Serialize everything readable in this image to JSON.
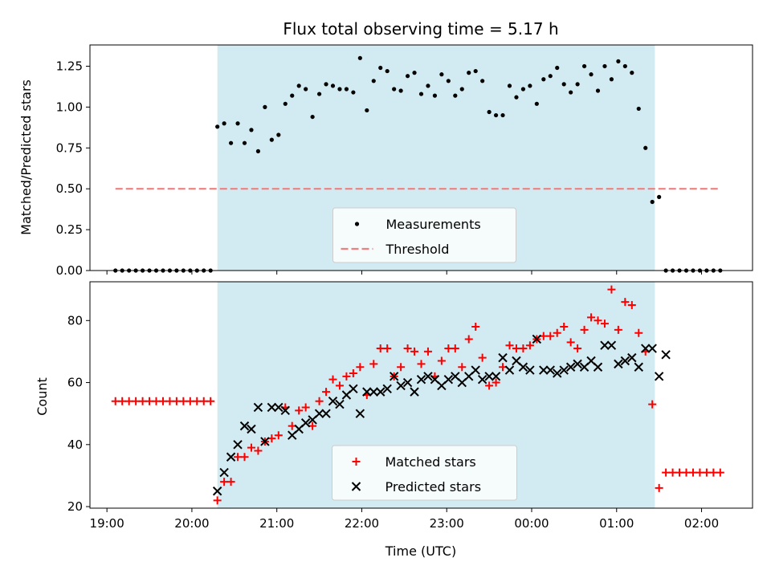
{
  "chart_data": [
    {
      "type": "scatter",
      "title": "Flux total observing time = 5.17 h",
      "ylabel": "Matched/Predicted stars",
      "xlabel": "",
      "x_unit": "hours since 19:00 UTC",
      "xlim": [
        18.8,
        26.6
      ],
      "ylim": [
        0.0,
        1.38
      ],
      "yticks": [
        0.0,
        0.25,
        0.5,
        0.75,
        1.0,
        1.25
      ],
      "ytick_labels": [
        "0.00",
        "0.25",
        "0.50",
        "0.75",
        "1.00",
        "1.25"
      ],
      "shaded_span": {
        "x": [
          20.3,
          25.45
        ],
        "color": "#add8e6"
      },
      "legend": {
        "placement": "lower center"
      },
      "series": [
        {
          "name": "Measurements",
          "marker": "dot",
          "color": "#000000",
          "x": [
            19.1,
            19.18,
            19.26,
            19.34,
            19.42,
            19.5,
            19.58,
            19.66,
            19.74,
            19.82,
            19.9,
            19.98,
            20.06,
            20.14,
            20.22,
            20.3,
            20.38,
            20.46,
            20.54,
            20.62,
            20.7,
            20.78,
            20.86,
            20.94,
            21.02,
            21.1,
            21.18,
            21.26,
            21.34,
            21.42,
            21.5,
            21.58,
            21.66,
            21.74,
            21.82,
            21.9,
            21.98,
            22.06,
            22.14,
            22.22,
            22.3,
            22.38,
            22.46,
            22.54,
            22.62,
            22.7,
            22.78,
            22.86,
            22.94,
            23.02,
            23.1,
            23.18,
            23.26,
            23.34,
            23.42,
            23.5,
            23.58,
            23.66,
            23.74,
            23.82,
            23.9,
            23.98,
            24.06,
            24.14,
            24.22,
            24.3,
            24.38,
            24.46,
            24.54,
            24.62,
            24.7,
            24.78,
            24.86,
            24.94,
            25.02,
            25.1,
            25.18,
            25.26,
            25.34,
            25.42,
            25.5,
            25.58,
            25.66,
            25.74,
            25.82,
            25.9,
            25.98,
            26.06,
            26.14,
            26.22
          ],
          "y": [
            0,
            0,
            0,
            0,
            0,
            0,
            0,
            0,
            0,
            0,
            0,
            0,
            0,
            0,
            0,
            0.88,
            0.9,
            0.78,
            0.9,
            0.78,
            0.86,
            0.73,
            1.0,
            0.8,
            0.83,
            1.02,
            1.07,
            1.13,
            1.11,
            0.94,
            1.08,
            1.14,
            1.13,
            1.11,
            1.11,
            1.09,
            1.3,
            0.98,
            1.16,
            1.24,
            1.22,
            1.11,
            1.1,
            1.19,
            1.21,
            1.08,
            1.13,
            1.07,
            1.2,
            1.16,
            1.07,
            1.11,
            1.21,
            1.22,
            1.16,
            0.97,
            0.95,
            0.95,
            1.13,
            1.06,
            1.11,
            1.13,
            1.02,
            1.17,
            1.19,
            1.24,
            1.14,
            1.09,
            1.14,
            1.25,
            1.2,
            1.1,
            1.25,
            1.17,
            1.28,
            1.25,
            1.21,
            0.99,
            0.75,
            0.42,
            0.45,
            0,
            0,
            0,
            0,
            0,
            0,
            0,
            0,
            0
          ]
        },
        {
          "name": "Threshold",
          "marker": "dashed-line",
          "color": "#f08080",
          "x": [
            19.1,
            26.2
          ],
          "y": [
            0.5,
            0.5
          ]
        }
      ]
    },
    {
      "type": "scatter",
      "title": "",
      "ylabel": "Count",
      "xlabel": "Time (UTC)",
      "x_unit": "hours since 19:00 UTC",
      "xlim": [
        18.8,
        26.6
      ],
      "ylim": [
        19.5,
        92.5
      ],
      "yticks": [
        20,
        40,
        60,
        80
      ],
      "ytick_labels": [
        "20",
        "40",
        "60",
        "80"
      ],
      "xticks": [
        19,
        20,
        21,
        22,
        23,
        24,
        25,
        26
      ],
      "xtick_labels": [
        "19:00",
        "20:00",
        "21:00",
        "22:00",
        "23:00",
        "00:00",
        "01:00",
        "02:00"
      ],
      "shaded_span": {
        "x": [
          20.3,
          25.45
        ],
        "color": "#add8e6"
      },
      "legend": {
        "placement": "lower center"
      },
      "series": [
        {
          "name": "Matched stars",
          "marker": "plus",
          "color": "#ff0000",
          "x": [
            19.1,
            19.18,
            19.26,
            19.34,
            19.42,
            19.5,
            19.58,
            19.66,
            19.74,
            19.82,
            19.9,
            19.98,
            20.06,
            20.14,
            20.22,
            20.3,
            20.38,
            20.46,
            20.54,
            20.62,
            20.7,
            20.78,
            20.86,
            20.94,
            21.02,
            21.1,
            21.18,
            21.26,
            21.34,
            21.42,
            21.5,
            21.58,
            21.66,
            21.74,
            21.82,
            21.9,
            21.98,
            22.06,
            22.14,
            22.22,
            22.3,
            22.38,
            22.46,
            22.54,
            22.62,
            22.7,
            22.78,
            22.86,
            22.94,
            23.02,
            23.1,
            23.18,
            23.26,
            23.34,
            23.42,
            23.5,
            23.58,
            23.66,
            23.74,
            23.82,
            23.9,
            23.98,
            24.06,
            24.14,
            24.22,
            24.3,
            24.38,
            24.46,
            24.54,
            24.62,
            24.7,
            24.78,
            24.86,
            24.94,
            25.02,
            25.1,
            25.18,
            25.26,
            25.34,
            25.42,
            25.5,
            25.58,
            25.66,
            25.74,
            25.82,
            25.9,
            25.98,
            26.06,
            26.14,
            26.22
          ],
          "y": [
            54,
            54,
            54,
            54,
            54,
            54,
            54,
            54,
            54,
            54,
            54,
            54,
            54,
            54,
            54,
            22,
            28,
            28,
            36,
            36,
            39,
            38,
            41,
            42,
            43,
            52,
            46,
            51,
            52,
            46,
            54,
            57,
            61,
            59,
            62,
            63,
            65,
            56,
            66,
            71,
            71,
            62,
            65,
            71,
            70,
            66,
            70,
            62,
            67,
            71,
            71,
            65,
            74,
            78,
            68,
            59,
            60,
            65,
            72,
            71,
            71,
            72,
            74,
            75,
            75,
            76,
            78,
            73,
            71,
            77,
            81,
            80,
            79,
            90,
            77,
            86,
            85,
            76,
            70,
            53,
            26,
            31,
            31,
            31,
            31,
            31,
            31,
            31,
            31,
            31
          ]
        },
        {
          "name": "Predicted stars",
          "marker": "x",
          "color": "#000000",
          "x": [
            20.3,
            20.38,
            20.46,
            20.54,
            20.62,
            20.7,
            20.78,
            20.86,
            20.94,
            21.02,
            21.1,
            21.18,
            21.26,
            21.34,
            21.42,
            21.5,
            21.58,
            21.66,
            21.74,
            21.82,
            21.9,
            21.98,
            22.06,
            22.14,
            22.22,
            22.3,
            22.38,
            22.46,
            22.54,
            22.62,
            22.7,
            22.78,
            22.86,
            22.94,
            23.02,
            23.1,
            23.18,
            23.26,
            23.34,
            23.42,
            23.5,
            23.58,
            23.66,
            23.74,
            23.82,
            23.9,
            23.98,
            24.06,
            24.14,
            24.22,
            24.3,
            24.38,
            24.46,
            24.54,
            24.62,
            24.7,
            24.78,
            24.86,
            24.94,
            25.02,
            25.1,
            25.18,
            25.26,
            25.34,
            25.42,
            25.5,
            25.58
          ],
          "y": [
            25,
            31,
            36,
            40,
            46,
            45,
            52,
            41,
            52,
            52,
            51,
            43,
            45,
            47,
            48,
            50,
            50,
            54,
            53,
            56,
            58,
            50,
            57,
            57,
            57,
            58,
            62,
            59,
            60,
            57,
            61,
            62,
            61,
            59,
            61,
            62,
            60,
            62,
            64,
            61,
            62,
            62,
            68,
            64,
            67,
            65,
            64,
            74,
            64,
            64,
            63,
            64,
            65,
            66,
            65,
            67,
            65,
            72,
            72,
            66,
            67,
            68,
            65,
            71,
            71,
            62,
            69
          ]
        }
      ]
    }
  ]
}
